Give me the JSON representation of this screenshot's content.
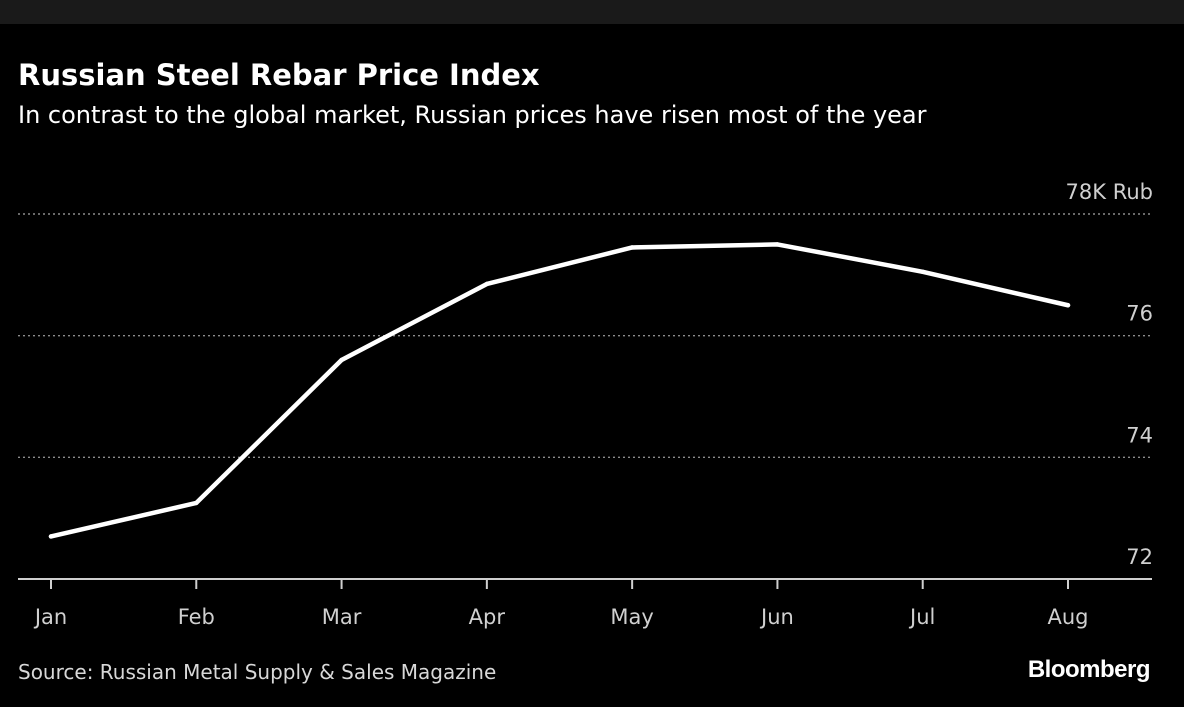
{
  "title": "Russian Steel Rebar Price Index",
  "subtitle": "In contrast to the global market, Russian prices have risen most of the year",
  "source": "Source: Russian Metal Supply & Sales Magazine",
  "brand": "Bloomberg",
  "colors": {
    "background": "#000000",
    "line": "#ffffff",
    "grid": "#8c8c8c",
    "text": "#d0d0d0"
  },
  "chart_data": {
    "type": "line",
    "title": "Russian Steel Rebar Price Index",
    "subtitle": "In contrast to the global market, Russian prices have risen most of the year",
    "categories": [
      "Jan",
      "Feb",
      "Mar",
      "Apr",
      "May",
      "Jun",
      "Jul",
      "Aug"
    ],
    "series": [
      {
        "values": [
          72.7,
          73.25,
          75.6,
          76.85,
          77.45,
          77.5,
          77.05,
          76.5
        ]
      }
    ],
    "y_ticks": [
      72,
      74,
      76,
      78
    ],
    "y_tick_labels": [
      "72",
      "74",
      "76",
      "78K Rub"
    ],
    "ylim": [
      72,
      78
    ],
    "grid": true,
    "y_axis_side": "right"
  }
}
